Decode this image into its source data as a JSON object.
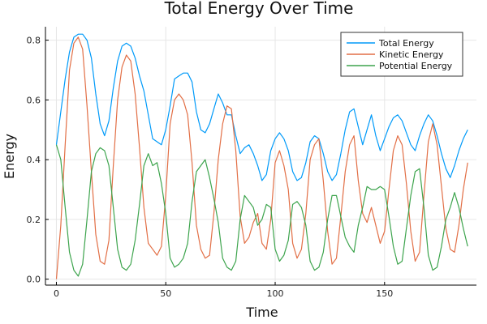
{
  "chart_data": {
    "type": "line",
    "title": "Total Energy Over Time",
    "xlabel": "Time",
    "ylabel": "Energy",
    "xlim": [
      -5,
      192
    ],
    "ylim": [
      -0.02,
      0.845
    ],
    "xticks": [
      0,
      50,
      100,
      150
    ],
    "yticks": [
      0.0,
      0.2,
      0.4,
      0.6,
      0.8
    ],
    "ytick_labels": [
      "0.0",
      "0.2",
      "0.4",
      "0.6",
      "0.8"
    ],
    "grid": true,
    "legend_position": "top-right",
    "colors": {
      "total": "#009af9",
      "kinetic": "#e26f46",
      "potential": "#3da44d"
    },
    "series": [
      {
        "name": "Total Energy",
        "color": "#009af9",
        "x": [
          0,
          2,
          4,
          6,
          8,
          10,
          12,
          14,
          16,
          18,
          20,
          22,
          24,
          26,
          28,
          30,
          32,
          34,
          36,
          38,
          40,
          42,
          44,
          46,
          48,
          50,
          52,
          54,
          56,
          58,
          60,
          62,
          64,
          66,
          68,
          70,
          72,
          74,
          76,
          78,
          80,
          82,
          84,
          86,
          88,
          90,
          92,
          94,
          96,
          98,
          100,
          102,
          104,
          106,
          108,
          110,
          112,
          114,
          116,
          118,
          120,
          122,
          124,
          126,
          128,
          130,
          132,
          134,
          136,
          138,
          140,
          142,
          144,
          146,
          148,
          150,
          152,
          154,
          156,
          158,
          160,
          162,
          164,
          166,
          168,
          170,
          172,
          174,
          176,
          178,
          180,
          182,
          184,
          186,
          188
        ],
        "y": [
          0.45,
          0.56,
          0.67,
          0.76,
          0.81,
          0.82,
          0.82,
          0.8,
          0.74,
          0.62,
          0.52,
          0.48,
          0.53,
          0.64,
          0.73,
          0.78,
          0.79,
          0.78,
          0.74,
          0.68,
          0.63,
          0.55,
          0.47,
          0.46,
          0.45,
          0.5,
          0.58,
          0.67,
          0.68,
          0.69,
          0.69,
          0.66,
          0.56,
          0.5,
          0.49,
          0.52,
          0.57,
          0.62,
          0.59,
          0.55,
          0.55,
          0.48,
          0.42,
          0.44,
          0.45,
          0.42,
          0.38,
          0.33,
          0.35,
          0.43,
          0.47,
          0.49,
          0.47,
          0.43,
          0.36,
          0.33,
          0.34,
          0.39,
          0.46,
          0.48,
          0.47,
          0.42,
          0.36,
          0.33,
          0.35,
          0.42,
          0.5,
          0.56,
          0.57,
          0.51,
          0.45,
          0.5,
          0.55,
          0.48,
          0.43,
          0.47,
          0.51,
          0.54,
          0.55,
          0.53,
          0.49,
          0.45,
          0.43,
          0.48,
          0.52,
          0.55,
          0.53,
          0.48,
          0.42,
          0.37,
          0.34,
          0.38,
          0.43,
          0.47,
          0.5
        ]
      },
      {
        "name": "Kinetic Energy",
        "color": "#e26f46",
        "x": [
          0,
          2,
          4,
          6,
          8,
          10,
          12,
          14,
          16,
          18,
          20,
          22,
          24,
          26,
          28,
          30,
          32,
          34,
          36,
          38,
          40,
          42,
          44,
          46,
          48,
          50,
          52,
          54,
          56,
          58,
          60,
          62,
          64,
          66,
          68,
          70,
          72,
          74,
          76,
          78,
          80,
          82,
          84,
          86,
          88,
          90,
          92,
          94,
          96,
          98,
          100,
          102,
          104,
          106,
          108,
          110,
          112,
          114,
          116,
          118,
          120,
          122,
          124,
          126,
          128,
          130,
          132,
          134,
          136,
          138,
          140,
          142,
          144,
          146,
          148,
          150,
          152,
          154,
          156,
          158,
          160,
          162,
          164,
          166,
          168,
          170,
          172,
          174,
          176,
          178,
          180,
          182,
          184,
          186,
          188
        ],
        "y": [
          0.0,
          0.18,
          0.45,
          0.7,
          0.79,
          0.81,
          0.77,
          0.58,
          0.36,
          0.15,
          0.06,
          0.05,
          0.13,
          0.38,
          0.6,
          0.71,
          0.75,
          0.73,
          0.62,
          0.44,
          0.24,
          0.12,
          0.1,
          0.08,
          0.11,
          0.28,
          0.52,
          0.6,
          0.62,
          0.6,
          0.55,
          0.39,
          0.18,
          0.1,
          0.07,
          0.08,
          0.22,
          0.4,
          0.52,
          0.58,
          0.57,
          0.43,
          0.21,
          0.12,
          0.14,
          0.19,
          0.22,
          0.12,
          0.1,
          0.2,
          0.39,
          0.43,
          0.38,
          0.3,
          0.12,
          0.07,
          0.1,
          0.22,
          0.4,
          0.45,
          0.47,
          0.33,
          0.16,
          0.05,
          0.07,
          0.21,
          0.36,
          0.45,
          0.48,
          0.33,
          0.22,
          0.19,
          0.24,
          0.18,
          0.12,
          0.16,
          0.3,
          0.43,
          0.48,
          0.45,
          0.32,
          0.16,
          0.06,
          0.09,
          0.28,
          0.46,
          0.52,
          0.45,
          0.31,
          0.17,
          0.1,
          0.09,
          0.18,
          0.3,
          0.39
        ]
      },
      {
        "name": "Potential Energy",
        "color": "#3da44d",
        "x": [
          0,
          2,
          4,
          6,
          8,
          10,
          12,
          14,
          16,
          18,
          20,
          22,
          24,
          26,
          28,
          30,
          32,
          34,
          36,
          38,
          40,
          42,
          44,
          46,
          48,
          50,
          52,
          54,
          56,
          58,
          60,
          62,
          64,
          66,
          68,
          70,
          72,
          74,
          76,
          78,
          80,
          82,
          84,
          86,
          88,
          90,
          92,
          94,
          96,
          98,
          100,
          102,
          104,
          106,
          108,
          110,
          112,
          114,
          116,
          118,
          120,
          122,
          124,
          126,
          128,
          130,
          132,
          134,
          136,
          138,
          140,
          142,
          144,
          146,
          148,
          150,
          152,
          154,
          156,
          158,
          160,
          162,
          164,
          166,
          168,
          170,
          172,
          174,
          176,
          178,
          180,
          182,
          184,
          186,
          188
        ],
        "y": [
          0.45,
          0.4,
          0.24,
          0.09,
          0.03,
          0.01,
          0.05,
          0.2,
          0.36,
          0.42,
          0.44,
          0.43,
          0.38,
          0.24,
          0.1,
          0.04,
          0.03,
          0.05,
          0.13,
          0.25,
          0.38,
          0.42,
          0.38,
          0.39,
          0.32,
          0.22,
          0.07,
          0.04,
          0.05,
          0.07,
          0.12,
          0.26,
          0.36,
          0.38,
          0.4,
          0.34,
          0.27,
          0.19,
          0.07,
          0.04,
          0.03,
          0.06,
          0.2,
          0.28,
          0.26,
          0.24,
          0.18,
          0.2,
          0.25,
          0.24,
          0.1,
          0.06,
          0.08,
          0.13,
          0.25,
          0.26,
          0.24,
          0.18,
          0.06,
          0.03,
          0.04,
          0.09,
          0.2,
          0.28,
          0.28,
          0.21,
          0.14,
          0.11,
          0.09,
          0.18,
          0.24,
          0.31,
          0.3,
          0.3,
          0.31,
          0.3,
          0.21,
          0.11,
          0.05,
          0.06,
          0.17,
          0.28,
          0.36,
          0.37,
          0.24,
          0.08,
          0.03,
          0.04,
          0.11,
          0.2,
          0.24,
          0.29,
          0.24,
          0.17,
          0.11
        ]
      }
    ]
  }
}
